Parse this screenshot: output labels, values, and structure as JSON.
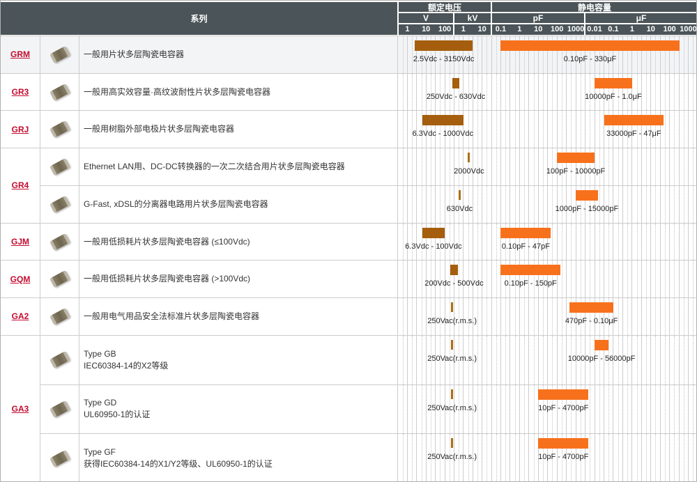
{
  "header": {
    "series_col": "系列",
    "voltage_group": "额定电压",
    "capacitance_group": "静电容量",
    "unit_v": "V",
    "unit_kv": "kV",
    "unit_pf": "pF",
    "unit_uf": "μF"
  },
  "colors": {
    "header_bg": "#4b5458",
    "voltage_bar": "#a55e0d",
    "voltage_marker": "#aa6f13",
    "capacitance_bar": "#f7711c",
    "series_link": "#c40a2e",
    "row_highlight": "#f3f4f6",
    "gridline": "#cccccc"
  },
  "chart_data": {
    "type": "table",
    "title": "",
    "voltage_axis": {
      "scale": "log",
      "unit_sections": [
        "V",
        "kV"
      ],
      "ticks": [
        {
          "label": "1",
          "V": 1
        },
        {
          "label": "10",
          "V": 10
        },
        {
          "label": "100",
          "V": 100
        },
        {
          "label": "1",
          "V": 1000
        },
        {
          "label": "10",
          "V": 10000
        }
      ]
    },
    "capacitance_axis": {
      "scale": "log",
      "unit_sections": [
        "pF",
        "μF"
      ],
      "ticks": [
        {
          "label": "0.1",
          "pF": 0.1
        },
        {
          "label": "1",
          "pF": 1
        },
        {
          "label": "10",
          "pF": 10
        },
        {
          "label": "100",
          "pF": 100
        },
        {
          "label": "1000",
          "pF": 1000
        },
        {
          "label": "0.01",
          "pF": 10000
        },
        {
          "label": "0.1",
          "pF": 100000
        },
        {
          "label": "1",
          "pF": 1000000
        },
        {
          "label": "10",
          "pF": 10000000
        },
        {
          "label": "100",
          "pF": 100000000
        },
        {
          "label": "1000",
          "pF": 1000000000
        }
      ]
    },
    "groups": [
      {
        "series": "GRM",
        "highlight": true,
        "rows": [
          {
            "desc": [
              "一般用片状多层陶瓷电容器"
            ],
            "voltage_V": [
              2.5,
              3150
            ],
            "voltage_label": "2.5Vdc - 3150Vdc",
            "capacitance_pF": [
              0.1,
              330000000
            ],
            "capacitance_label": "0.10pF - 330μF"
          }
        ]
      },
      {
        "series": "GR3",
        "highlight": false,
        "rows": [
          {
            "desc": [
              "一般用高实效容量·高纹波耐性片状多层陶瓷电容器"
            ],
            "voltage_V": [
              250,
              630
            ],
            "voltage_label": "250Vdc - 630Vdc",
            "capacitance_pF": [
              10000,
              1000000
            ],
            "capacitance_label": "10000pF - 1.0μF"
          }
        ]
      },
      {
        "series": "GRJ",
        "highlight": false,
        "rows": [
          {
            "desc": [
              "一般用树脂外部电极片状多层陶瓷电容器"
            ],
            "voltage_V": [
              6.3,
              1000
            ],
            "voltage_label": "6.3Vdc - 1000Vdc",
            "capacitance_pF": [
              33000,
              47000000
            ],
            "capacitance_label": "33000pF - 47μF"
          }
        ]
      },
      {
        "series": "GR4",
        "highlight": false,
        "rows": [
          {
            "desc": [
              "Ethernet LAN用、DC-DC转换器的一次二次结合用片状多层陶瓷电容器"
            ],
            "voltage_V": [
              2000,
              2000
            ],
            "voltage_label": "2000Vdc",
            "capacitance_pF": [
              100,
              10000
            ],
            "capacitance_label": "100pF - 10000pF"
          },
          {
            "desc": [
              "G-Fast, xDSL的分离器电路用片状多层陶瓷电容器"
            ],
            "voltage_V": [
              630,
              630
            ],
            "voltage_label": "630Vdc",
            "capacitance_pF": [
              1000,
              15000
            ],
            "capacitance_label": "1000pF - 15000pF"
          }
        ]
      },
      {
        "series": "GJM",
        "highlight": false,
        "rows": [
          {
            "desc": [
              "一般用低损耗片状多层陶瓷电容器 (≤100Vdc)"
            ],
            "voltage_V": [
              6.3,
              100
            ],
            "voltage_label": "6.3Vdc - 100Vdc",
            "capacitance_pF": [
              0.1,
              47
            ],
            "capacitance_label": "0.10pF - 47pF"
          }
        ]
      },
      {
        "series": "GQM",
        "highlight": false,
        "rows": [
          {
            "desc": [
              "一般用低损耗片状多层陶瓷电容器 (>100Vdc)"
            ],
            "voltage_V": [
              200,
              500
            ],
            "voltage_label": "200Vdc - 500Vdc",
            "capacitance_pF": [
              0.1,
              150
            ],
            "capacitance_label": "0.10pF - 150pF"
          }
        ]
      },
      {
        "series": "GA2",
        "highlight": false,
        "rows": [
          {
            "desc": [
              "一般用电气用品安全法标准片状多层陶瓷电容器"
            ],
            "voltage_V": [
              250,
              250
            ],
            "voltage_label": "250Vac(r.m.s.)",
            "capacitance_pF": [
              470,
              100000
            ],
            "capacitance_label": "470pF - 0.10μF"
          }
        ]
      },
      {
        "series": "GA3",
        "highlight": false,
        "rows": [
          {
            "desc": [
              "Type GB",
              "IEC60384-14的X2等级"
            ],
            "voltage_V": [
              250,
              250
            ],
            "voltage_label": "250Vac(r.m.s.)",
            "capacitance_pF": [
              10000,
              56000
            ],
            "capacitance_label": "10000pF - 56000pF"
          },
          {
            "desc": [
              "Type GD",
              "UL60950-1的认证"
            ],
            "voltage_V": [
              250,
              250
            ],
            "voltage_label": "250Vac(r.m.s.)",
            "capacitance_pF": [
              10,
              4700
            ],
            "capacitance_label": "10pF - 4700pF"
          },
          {
            "desc": [
              "Type GF",
              "获得IEC60384-14的X1/Y2等级、UL60950-1的认证"
            ],
            "voltage_V": [
              250,
              250
            ],
            "voltage_label": "250Vac(r.m.s.)",
            "capacitance_pF": [
              10,
              4700
            ],
            "capacitance_label": "10pF - 4700pF"
          }
        ]
      }
    ]
  }
}
